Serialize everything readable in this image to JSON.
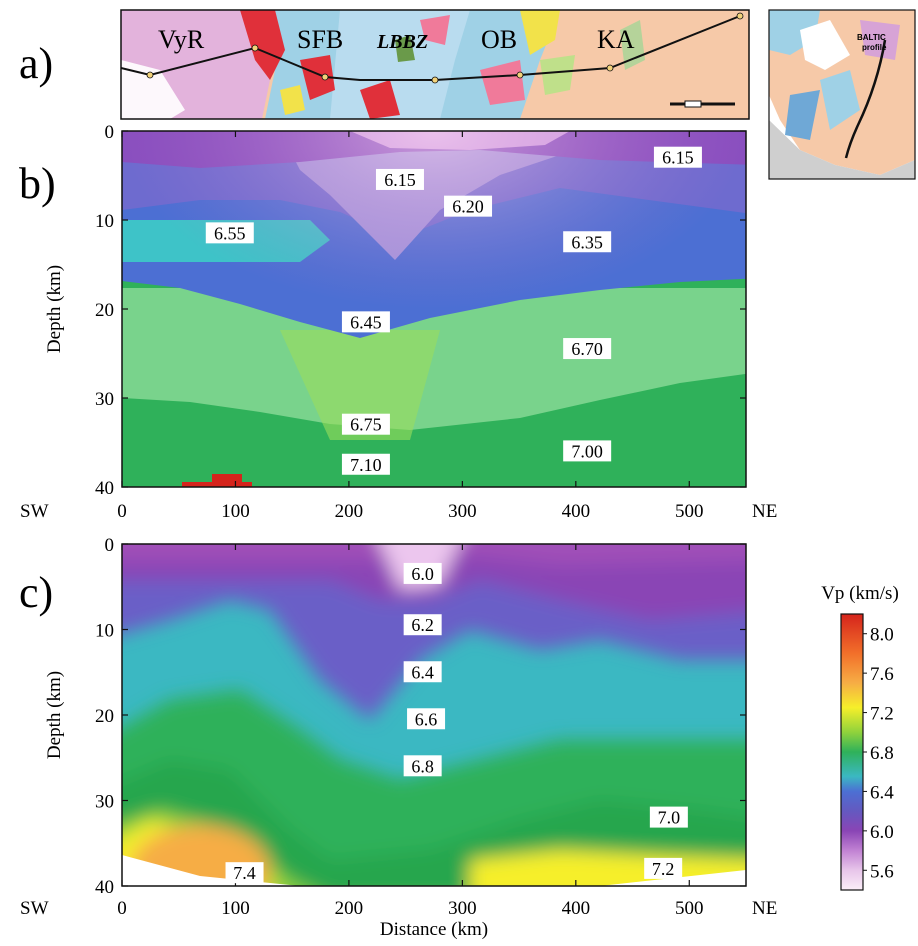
{
  "panels": {
    "a": {
      "letter": "a)",
      "regions": [
        {
          "label": "VyR",
          "italic": false
        },
        {
          "label": "SFB",
          "italic": false
        },
        {
          "label": "LBBZ",
          "italic": true
        },
        {
          "label": "OB",
          "italic": false
        },
        {
          "label": "KA",
          "italic": false
        }
      ],
      "inset_label_line1": "BALTIC",
      "inset_label_line2": "profile",
      "colors": {
        "archaean": "#f6c9a8",
        "vyr": "#e3b3dc",
        "sfb": "#9fd1e6",
        "granite": "#e0303a",
        "track": "#111111"
      }
    },
    "b": {
      "letter": "b)",
      "y_label": "Depth (km)",
      "x_ticks": [
        "0",
        "100",
        "200",
        "300",
        "400",
        "500"
      ],
      "y_ticks": [
        "0",
        "10",
        "20",
        "30",
        "40"
      ],
      "x_end_left": "SW",
      "x_end_right": "NE"
    },
    "c": {
      "letter": "c)",
      "y_label": "Depth (km)",
      "x_label": "Distance (km)",
      "x_ticks": [
        "0",
        "100",
        "200",
        "300",
        "400",
        "500"
      ],
      "y_ticks": [
        "0",
        "10",
        "20",
        "30",
        "40"
      ],
      "x_end_left": "SW",
      "x_end_right": "NE"
    }
  },
  "chart_data": [
    {
      "type": "heatmap",
      "panel": "b",
      "x_range_km": [
        0,
        550
      ],
      "depth_range_km": [
        0,
        40
      ],
      "contour_labels": [
        {
          "text": "6.15",
          "x": 245,
          "depth": 5.5
        },
        {
          "text": "6.15",
          "x": 490,
          "depth": 3
        },
        {
          "text": "6.20",
          "x": 305,
          "depth": 8.5
        },
        {
          "text": "6.55",
          "x": 95,
          "depth": 11.5
        },
        {
          "text": "6.35",
          "x": 410,
          "depth": 12.5
        },
        {
          "text": "6.45",
          "x": 215,
          "depth": 21.5
        },
        {
          "text": "6.70",
          "x": 410,
          "depth": 24.5
        },
        {
          "text": "6.75",
          "x": 215,
          "depth": 33
        },
        {
          "text": "7.00",
          "x": 410,
          "depth": 36
        },
        {
          "text": "7.10",
          "x": 215,
          "depth": 37.5
        }
      ]
    },
    {
      "type": "heatmap",
      "panel": "c",
      "x_range_km": [
        0,
        550
      ],
      "depth_range_km": [
        0,
        40
      ],
      "x_label": "Distance (km)",
      "y_label": "Depth (km)",
      "contour_labels": [
        {
          "text": "6.0",
          "x": 265,
          "depth": 3.5
        },
        {
          "text": "6.2",
          "x": 265,
          "depth": 9.5
        },
        {
          "text": "6.4",
          "x": 265,
          "depth": 15
        },
        {
          "text": "6.6",
          "x": 268,
          "depth": 20.5
        },
        {
          "text": "6.8",
          "x": 265,
          "depth": 26
        },
        {
          "text": "7.0",
          "x": 482,
          "depth": 32
        },
        {
          "text": "7.4",
          "x": 108,
          "depth": 38.5
        },
        {
          "text": "7.2",
          "x": 477,
          "depth": 38
        }
      ]
    }
  ],
  "legend": {
    "title": "Vp (km/s)",
    "ticks": [
      "8.0",
      "7.6",
      "7.2",
      "6.8",
      "6.4",
      "6.0",
      "5.6"
    ],
    "scale_top": 8.2,
    "scale_bottom": 5.4,
    "stops": [
      {
        "v": 8.2,
        "color": "#d5241c"
      },
      {
        "v": 7.8,
        "color": "#f2702a"
      },
      {
        "v": 7.5,
        "color": "#f6ad45"
      },
      {
        "v": 7.25,
        "color": "#f6ef2a"
      },
      {
        "v": 7.0,
        "color": "#8fd23c"
      },
      {
        "v": 6.8,
        "color": "#2fb15a"
      },
      {
        "v": 6.55,
        "color": "#3bb8c2"
      },
      {
        "v": 6.4,
        "color": "#4c6fd3"
      },
      {
        "v": 6.2,
        "color": "#6459c0"
      },
      {
        "v": 6.0,
        "color": "#8a45b5"
      },
      {
        "v": 5.8,
        "color": "#c182d3"
      },
      {
        "v": 5.6,
        "color": "#e8c6ea"
      },
      {
        "v": 5.4,
        "color": "#fbeef8"
      }
    ]
  }
}
